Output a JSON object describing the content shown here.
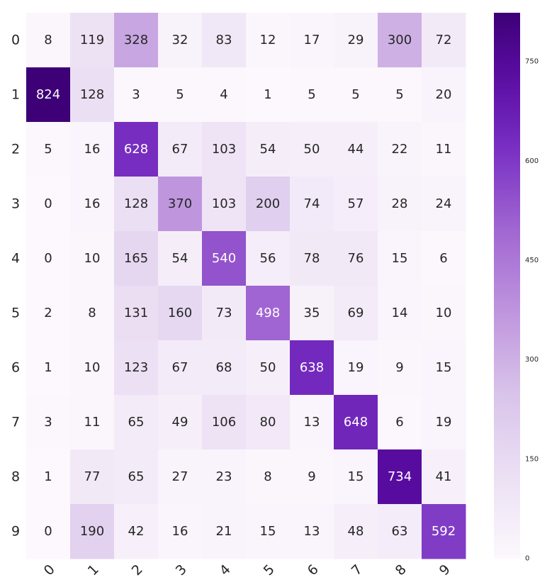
{
  "chart_data": {
    "type": "heatmap",
    "title": "",
    "xlabel": "",
    "ylabel": "",
    "x_labels": [
      "0",
      "1",
      "2",
      "3",
      "4",
      "5",
      "6",
      "7",
      "8",
      "9"
    ],
    "y_labels": [
      "0",
      "1",
      "2",
      "3",
      "4",
      "5",
      "6",
      "7",
      "8",
      "9"
    ],
    "values": [
      [
        8,
        119,
        328,
        32,
        83,
        12,
        17,
        29,
        300,
        72
      ],
      [
        824,
        128,
        3,
        5,
        4,
        1,
        5,
        5,
        5,
        20
      ],
      [
        5,
        16,
        628,
        67,
        103,
        54,
        50,
        44,
        22,
        11
      ],
      [
        0,
        16,
        128,
        370,
        103,
        200,
        74,
        57,
        28,
        24
      ],
      [
        0,
        10,
        165,
        54,
        540,
        56,
        78,
        76,
        15,
        6
      ],
      [
        2,
        8,
        131,
        160,
        73,
        498,
        35,
        69,
        14,
        10
      ],
      [
        1,
        10,
        123,
        67,
        68,
        50,
        638,
        19,
        9,
        15
      ],
      [
        3,
        11,
        65,
        49,
        106,
        80,
        13,
        648,
        6,
        19
      ],
      [
        1,
        77,
        65,
        27,
        23,
        8,
        9,
        15,
        734,
        41
      ],
      [
        0,
        190,
        42,
        16,
        21,
        15,
        13,
        48,
        63,
        592
      ]
    ],
    "value_range": [
      0,
      824
    ],
    "colorbar": {
      "ticks": [
        "0",
        "150",
        "300",
        "450",
        "600",
        "750"
      ],
      "tick_values": [
        0,
        150,
        300,
        450,
        600,
        750
      ]
    },
    "colormap": "Purples",
    "colors": {
      "low": "#fcfbfd",
      "high": "#3f007d"
    },
    "grid": false,
    "legend": "colorbar-right"
  }
}
